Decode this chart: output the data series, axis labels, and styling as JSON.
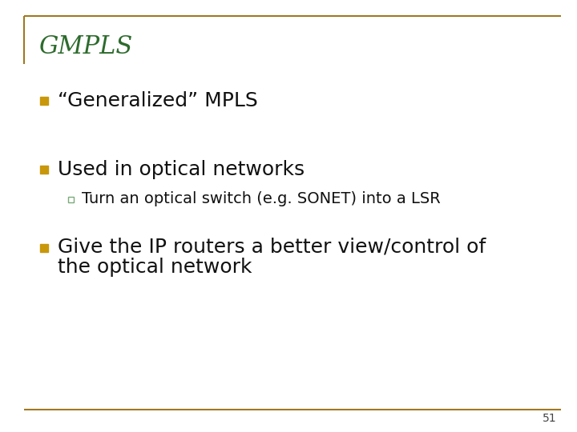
{
  "title": "GMPLS",
  "title_color": "#2d6b2d",
  "background_color": "#ffffff",
  "border_color": "#a07820",
  "bullet_color": "#c8980a",
  "sub_bullet_outline": "#7aaa7a",
  "text_color": "#111111",
  "bullet1": "“Generalized” MPLS",
  "bullet2": "Used in optical networks",
  "sub_bullet": "Turn an optical switch (e.g. SONET) into a LSR",
  "bullet3_line1": "Give the IP routers a better view/control of",
  "bullet3_line2": "the optical network",
  "page_number": "51",
  "title_fontsize": 22,
  "bullet_fontsize": 18,
  "sub_bullet_fontsize": 14,
  "page_num_fontsize": 10
}
